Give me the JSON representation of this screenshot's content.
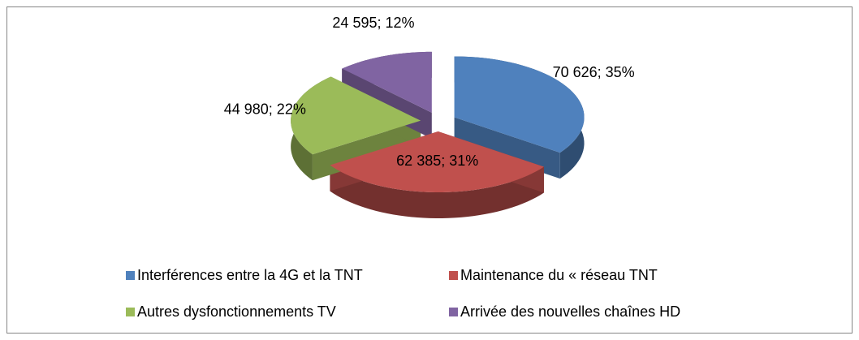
{
  "chart_data": {
    "type": "pie",
    "categories": [
      "Interférences entre la 4G et la TNT",
      "Maintenance du « réseau TNT",
      "Autres dysfonctionnements TV",
      "Arrivée des nouvelles chaînes HD"
    ],
    "values": [
      70626,
      62385,
      44980,
      24595
    ],
    "value_labels": [
      "70 626; 35%",
      "62 385; 31%",
      "44 980; 22%",
      "24 595; 12%"
    ],
    "colors": [
      "#4f81bd",
      "#c0504d",
      "#9bbb59",
      "#8064a2"
    ],
    "legend": "bottom"
  }
}
